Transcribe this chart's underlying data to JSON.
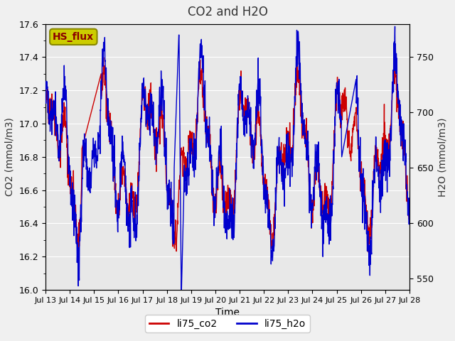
{
  "title": "CO2 and H2O",
  "xlabel": "Time",
  "ylabel_left": "CO2 (mmol/m3)",
  "ylabel_right": "H2O (mmol/m3)",
  "ylim_left": [
    16.0,
    17.6
  ],
  "ylim_right": [
    540,
    780
  ],
  "x_tick_labels": [
    "Jul 13",
    "Jul 14",
    "Jul 15",
    "Jul 16",
    "Jul 17",
    "Jul 18",
    "Jul 19",
    "Jul 20",
    "Jul 21",
    "Jul 22",
    "Jul 23",
    "Jul 24",
    "Jul 25",
    "Jul 26",
    "Jul 27",
    "Jul 28"
  ],
  "color_co2": "#cc0000",
  "color_h2o": "#0000cc",
  "bg_color": "#e8e8e8",
  "plot_bg": "#e8e8e8",
  "legend_box_color": "#cccc00",
  "legend_text_co2": "li75_co2",
  "legend_text_h2o": "li75_h2o",
  "watermark_text": "HS_flux",
  "watermark_color": "#8b0000",
  "watermark_bg": "#cccc00",
  "seed": 42,
  "n_points": 1500
}
